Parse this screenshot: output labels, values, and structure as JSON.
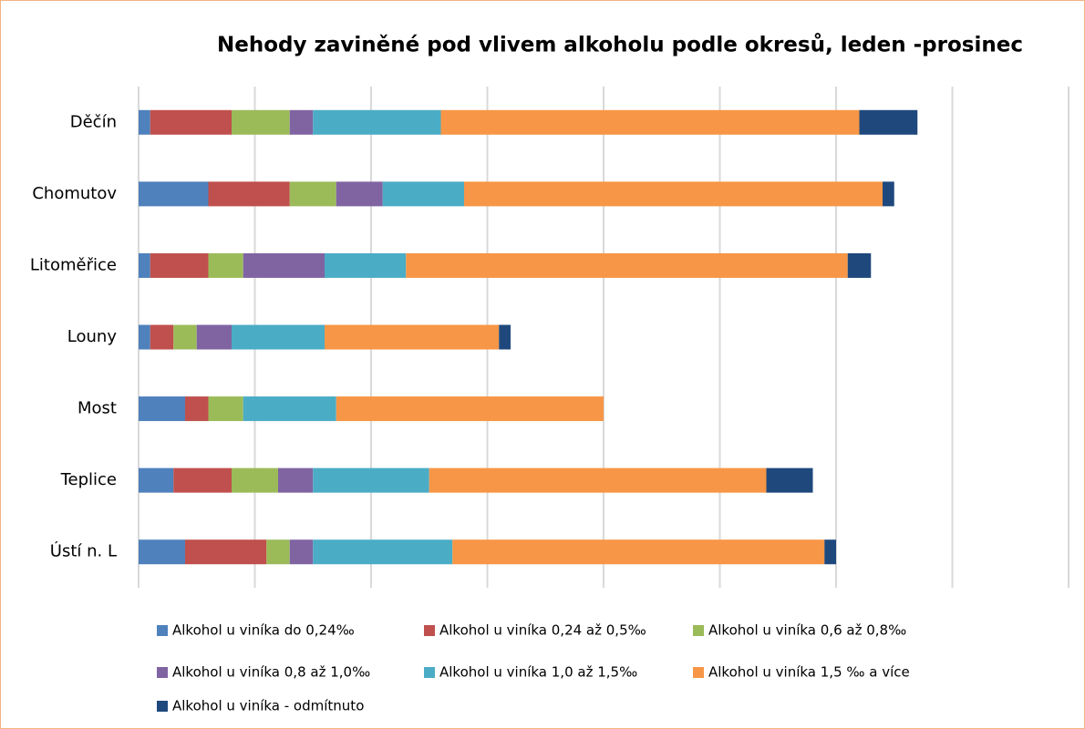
{
  "chart_data": {
    "type": "bar",
    "orientation": "horizontal",
    "stacked": true,
    "title": "Nehody zaviněné pod vlivem alkoholu  podle okresů, leden -prosinec",
    "categories": [
      "Děčín",
      "Chomutov",
      "Litoměřice",
      "Louny",
      "Most",
      "Teplice",
      "Ústí n. L"
    ],
    "series": [
      {
        "name": "Alkohol u viníka do 0,24‰",
        "color": "#4f81bd",
        "values": [
          1,
          6,
          1,
          1,
          4,
          3,
          4
        ]
      },
      {
        "name": "Alkohol u viníka 0,24 až 0,5‰",
        "color": "#c0504d",
        "values": [
          7,
          7,
          5,
          2,
          2,
          5,
          7
        ]
      },
      {
        "name": "Alkohol u viníka 0,6 až 0,8‰",
        "color": "#9bbb59",
        "values": [
          5,
          4,
          3,
          2,
          3,
          4,
          2
        ]
      },
      {
        "name": "Alkohol u viníka 0,8 až 1,0‰",
        "color": "#8064a2",
        "values": [
          2,
          4,
          7,
          3,
          0,
          3,
          2
        ]
      },
      {
        "name": "Alkohol u viníka 1,0 až 1,5‰",
        "color": "#4bacc6",
        "values": [
          11,
          7,
          7,
          8,
          8,
          10,
          12
        ]
      },
      {
        "name": "Alkohol u viníka 1,5 ‰ a více",
        "color": "#f79646",
        "values": [
          36,
          36,
          38,
          15,
          23,
          29,
          32
        ]
      },
      {
        "name": "Alkohol u viníka - odmítnuto",
        "color": "#1f497d",
        "values": [
          5,
          1,
          2,
          1,
          0,
          4,
          1
        ]
      }
    ],
    "xlim": [
      0,
      80
    ],
    "xticks": [
      0,
      10,
      20,
      30,
      40,
      50,
      60,
      70,
      80
    ],
    "grid": true
  }
}
